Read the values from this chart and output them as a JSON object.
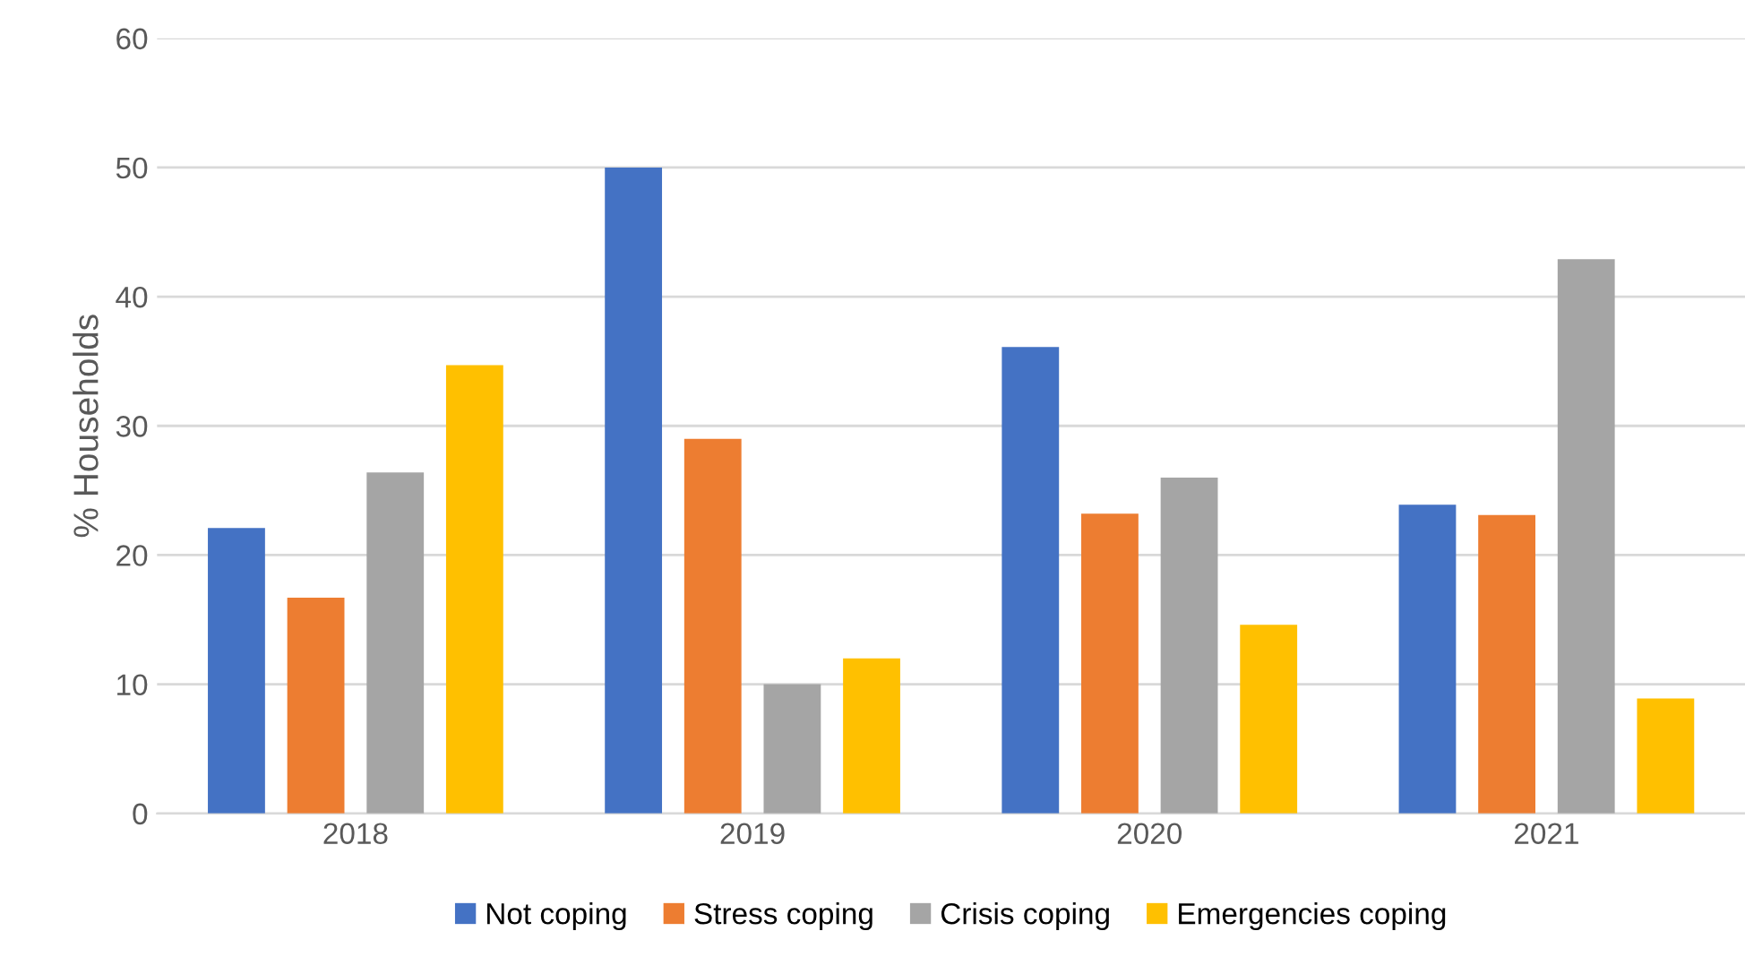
{
  "chart_data": {
    "type": "bar",
    "ylabel": "% Households",
    "categories": [
      "2018",
      "2019",
      "2020",
      "2021"
    ],
    "series": [
      {
        "name": "Not coping",
        "color": "#4472c4",
        "values": [
          22.1,
          50,
          36.1,
          23.9
        ]
      },
      {
        "name": "Stress coping",
        "color": "#ed7d31",
        "values": [
          16.7,
          29,
          23.2,
          23.1
        ]
      },
      {
        "name": "Crisis coping",
        "color": "#a5a5a5",
        "values": [
          26.4,
          10,
          26,
          42.9
        ]
      },
      {
        "name": "Emergencies coping",
        "color": "#ffc000",
        "values": [
          34.7,
          12,
          14.6,
          8.9
        ]
      }
    ],
    "ylim": [
      0,
      60
    ],
    "yticks": [
      0,
      10,
      20,
      30,
      40,
      50,
      60
    ],
    "grid": "y",
    "legend": "bottom"
  }
}
